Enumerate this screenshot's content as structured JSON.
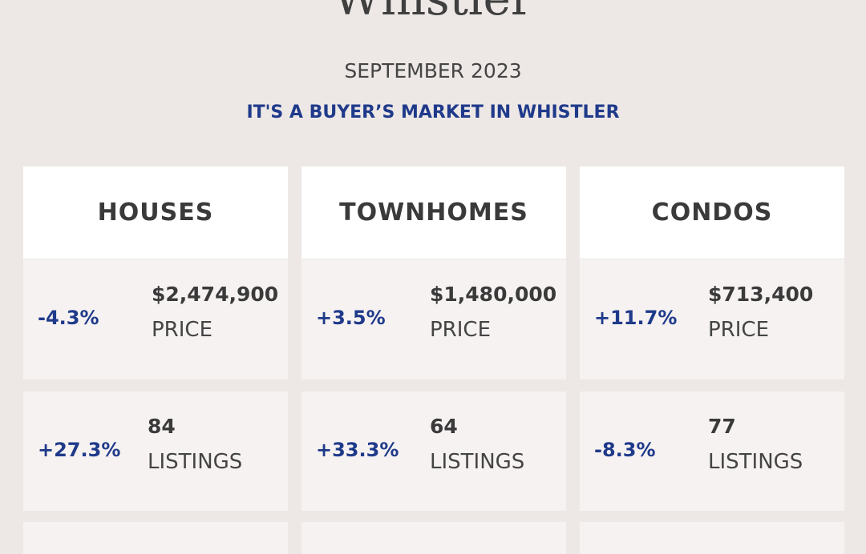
{
  "header": {
    "title": "Whistler",
    "date": "SEPTEMBER 2023",
    "headline": "IT'S A BUYER’S MARKET IN WHISTLER"
  },
  "columns": [
    {
      "heading": "HOUSES",
      "stats": [
        {
          "change": "-4.3%",
          "value": "$2,474,900",
          "label": "PRICE"
        },
        {
          "change": "+27.3%",
          "value": "84",
          "label": "LISTINGS"
        }
      ]
    },
    {
      "heading": "TOWNHOMES",
      "stats": [
        {
          "change": "+3.5%",
          "value": "$1,480,000",
          "label": "PRICE"
        },
        {
          "change": "+33.3%",
          "value": "64",
          "label": "LISTINGS"
        }
      ]
    },
    {
      "heading": "CONDOS",
      "stats": [
        {
          "change": "+11.7%",
          "value": "$713,400",
          "label": "PRICE"
        },
        {
          "change": "-8.3%",
          "value": "77",
          "label": "LISTINGS"
        }
      ]
    }
  ]
}
